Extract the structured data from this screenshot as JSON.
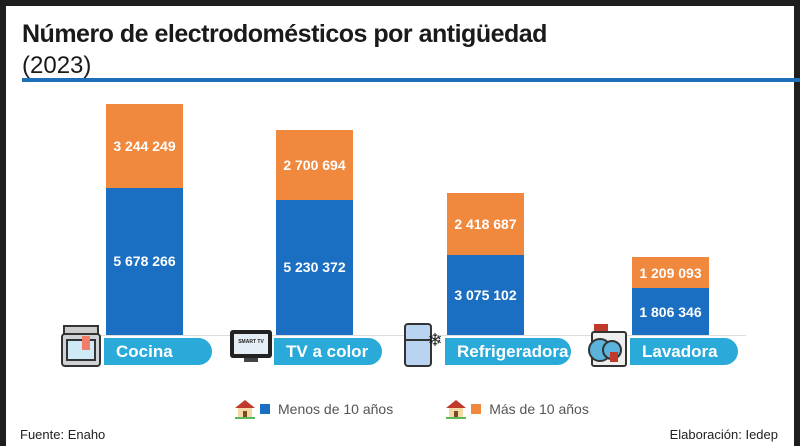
{
  "chart_data": {
    "type": "bar",
    "stacked": true,
    "title": "Número de electrodomésticos por antigüedad",
    "subtitle": "(2023)",
    "categories": [
      "Cocina",
      "TV a color",
      "Refrigeradora",
      "Lavadora"
    ],
    "series": [
      {
        "name": "Menos de 10 años",
        "color": "#1b6fc2",
        "values": [
          5678266,
          5230372,
          3075102,
          1806346
        ],
        "labels": [
          "5 678 266",
          "5 230 372",
          "3 075 102",
          "1 806 346"
        ]
      },
      {
        "name": "Más de 10 años",
        "color": "#f0883e",
        "values": [
          3244249,
          2700694,
          2418687,
          1209093
        ],
        "labels": [
          "3 244 249",
          "2 700 694",
          "2 418 687",
          "1 209 093"
        ]
      }
    ],
    "icons": [
      "stove-icon",
      "smart-tv-icon",
      "fridge-icon",
      "washing-machine-icon"
    ],
    "icon_text": {
      "tv": "SMART TV"
    },
    "legend_position": "bottom",
    "grid": false
  },
  "footer": {
    "source": "Fuente: Enaho",
    "credit": "Elaboración: Iedep"
  },
  "colors": {
    "pill": "#2aaad8",
    "rule": "#1e6fb8"
  }
}
